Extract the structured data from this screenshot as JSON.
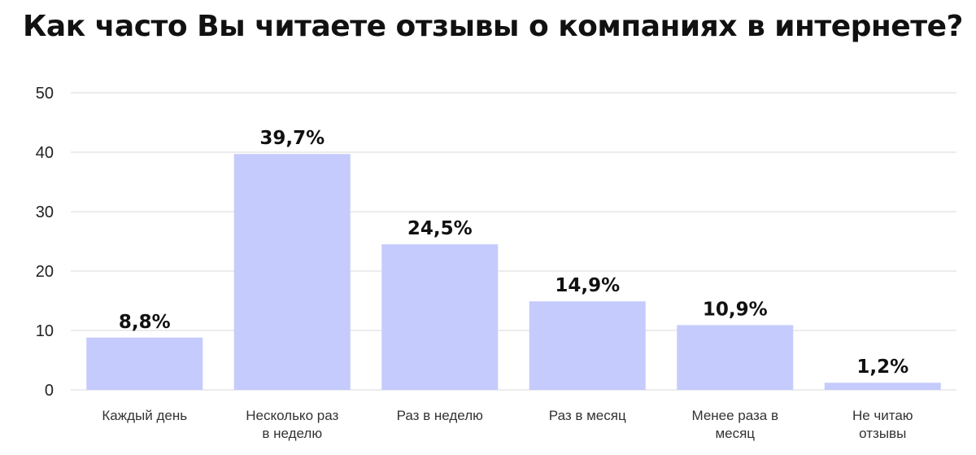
{
  "chart_data": {
    "type": "bar",
    "title": "Как часто Вы читаете отзывы о компаниях в интернете?",
    "categories": [
      [
        "Каждый день"
      ],
      [
        "Несколько раз",
        "в неделю"
      ],
      [
        "Раз в неделю"
      ],
      [
        "Раз в месяц"
      ],
      [
        "Менее раза в",
        "месяц"
      ],
      [
        "Не читаю",
        "отзывы"
      ]
    ],
    "values": [
      8.8,
      39.7,
      24.5,
      14.9,
      10.9,
      1.2
    ],
    "value_labels": [
      "8,8%",
      "39,7%",
      "24,5%",
      "14,9%",
      "10,9%",
      "1,2%"
    ],
    "yticks": [
      "0",
      "10",
      "20",
      "30",
      "40",
      "50"
    ],
    "ylim": [
      0,
      50
    ],
    "grid": true,
    "legend": false,
    "colors": {
      "bar": "#c5cbfc",
      "grid": "#d9d9d9",
      "text": "#111111"
    }
  }
}
